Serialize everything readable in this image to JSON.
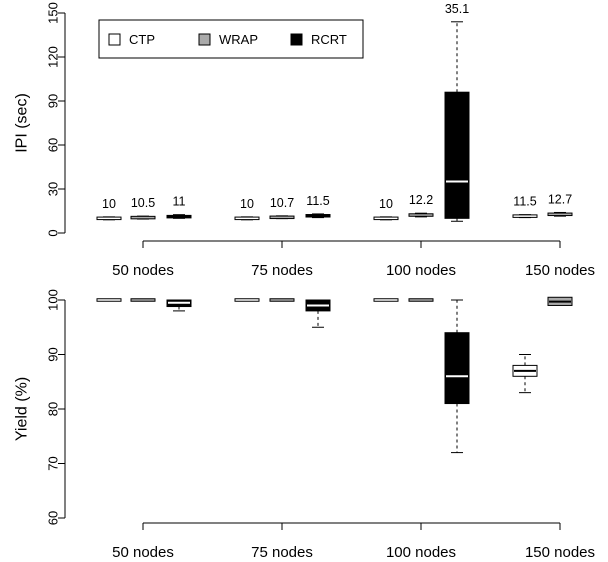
{
  "chart_data": [
    {
      "type": "boxplot",
      "ylabel": "IPI (sec)",
      "ylim": [
        0,
        150
      ],
      "yticks": [
        "0",
        "30",
        "60",
        "90",
        "120",
        "150"
      ],
      "categories": [
        "50 nodes",
        "75 nodes",
        "100 nodes",
        "150 nodes"
      ],
      "legend": {
        "position": "top-left",
        "entries": [
          {
            "name": "CTP",
            "color": "#ffffff"
          },
          {
            "name": "WRAP",
            "color": "#aaaaaa"
          },
          {
            "name": "RCRT",
            "color": "#000000"
          }
        ]
      },
      "series": [
        {
          "name": "CTP",
          "boxes": [
            {
              "category": "50 nodes",
              "min": 9,
              "q1": 9.5,
              "median": 10,
              "q3": 10.5,
              "max": 11,
              "label": "10"
            },
            {
              "category": "75 nodes",
              "min": 9,
              "q1": 9.5,
              "median": 10,
              "q3": 10.5,
              "max": 11,
              "label": "10"
            },
            {
              "category": "100 nodes",
              "min": 9,
              "q1": 9.5,
              "median": 10,
              "q3": 10.5,
              "max": 11,
              "label": "10"
            },
            {
              "category": "150 nodes",
              "min": 10.5,
              "q1": 11,
              "median": 11.5,
              "q3": 12,
              "max": 12.5,
              "label": "11.5"
            }
          ]
        },
        {
          "name": "WRAP",
          "boxes": [
            {
              "category": "50 nodes",
              "min": 9.5,
              "q1": 10,
              "median": 10.5,
              "q3": 11,
              "max": 11.5,
              "label": "10.5"
            },
            {
              "category": "75 nodes",
              "min": 9.8,
              "q1": 10.2,
              "median": 10.7,
              "q3": 11.2,
              "max": 11.7,
              "label": "10.7"
            },
            {
              "category": "100 nodes",
              "min": 11,
              "q1": 11.5,
              "median": 12.2,
              "q3": 13,
              "max": 13.5,
              "label": "12.2"
            },
            {
              "category": "150 nodes",
              "min": 11.5,
              "q1": 12,
              "median": 12.7,
              "q3": 13.5,
              "max": 14,
              "label": "12.7"
            }
          ]
        },
        {
          "name": "RCRT",
          "boxes": [
            {
              "category": "50 nodes",
              "min": 10,
              "q1": 10.3,
              "median": 11,
              "q3": 12,
              "max": 12.5,
              "label": "11"
            },
            {
              "category": "75 nodes",
              "min": 10.5,
              "q1": 11,
              "median": 11.5,
              "q3": 12.5,
              "max": 13,
              "label": "11.5"
            },
            {
              "category": "100 nodes",
              "min": 8,
              "q1": 10,
              "median": 35.1,
              "q3": 96,
              "max": 144,
              "label": "35.1"
            },
            {
              "category": "150 nodes",
              "missing": true
            }
          ]
        }
      ]
    },
    {
      "type": "boxplot",
      "ylabel": "Yield (%)",
      "ylim": [
        60,
        100
      ],
      "yticks": [
        "60",
        "70",
        "80",
        "90",
        "100"
      ],
      "categories": [
        "50 nodes",
        "75 nodes",
        "100 nodes",
        "150 nodes"
      ],
      "series": [
        {
          "name": "CTP",
          "boxes": [
            {
              "category": "50 nodes",
              "min": 100,
              "q1": 100,
              "median": 100,
              "q3": 100,
              "max": 100
            },
            {
              "category": "75 nodes",
              "min": 100,
              "q1": 100,
              "median": 100,
              "q3": 100,
              "max": 100
            },
            {
              "category": "100 nodes",
              "min": 100,
              "q1": 100,
              "median": 100,
              "q3": 100,
              "max": 100
            },
            {
              "category": "150 nodes",
              "min": 83,
              "q1": 86,
              "median": 87,
              "q3": 88,
              "max": 90
            }
          ]
        },
        {
          "name": "WRAP",
          "boxes": [
            {
              "category": "50 nodes",
              "min": 100,
              "q1": 100,
              "median": 100,
              "q3": 100,
              "max": 100
            },
            {
              "category": "75 nodes",
              "min": 100,
              "q1": 100,
              "median": 100,
              "q3": 100,
              "max": 100
            },
            {
              "category": "100 nodes",
              "min": 100,
              "q1": 100,
              "median": 100,
              "q3": 100,
              "max": 100
            },
            {
              "category": "150 nodes",
              "min": 99,
              "q1": 99,
              "median": 99.7,
              "q3": 100.5,
              "max": 100.5
            }
          ]
        },
        {
          "name": "RCRT",
          "boxes": [
            {
              "category": "50 nodes",
              "min": 98,
              "q1": 98.8,
              "median": 99.5,
              "q3": 100,
              "max": 100
            },
            {
              "category": "75 nodes",
              "min": 95,
              "q1": 98,
              "median": 99,
              "q3": 100,
              "max": 100
            },
            {
              "category": "100 nodes",
              "min": 72,
              "q1": 81,
              "median": 86,
              "q3": 94,
              "max": 100
            },
            {
              "category": "150 nodes",
              "missing": true
            }
          ]
        }
      ]
    }
  ]
}
